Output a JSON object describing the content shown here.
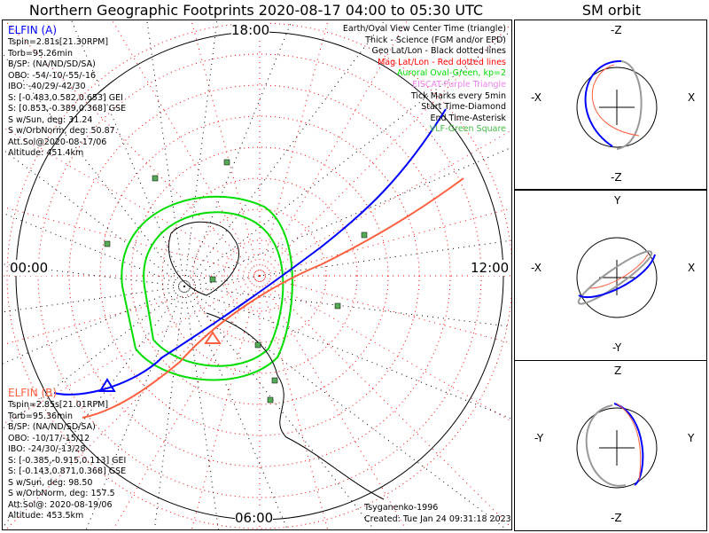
{
  "title": "Northern Geographic Footprints 2020-08-17 04:00 to 05:30 UTC",
  "sm_title": "SM orbit",
  "hours": {
    "top": "18:00",
    "left": "00:00",
    "right": "12:00",
    "bottom": "06:00"
  },
  "elfin_a": {
    "name": "ELFIN (A)",
    "color": "#0000ff",
    "lines": [
      "Tspin=2.81s[21.30RPM]",
      "Torb=95.26min",
      "B/SP: (NA/ND/SD/SA)",
      "OBO: -54/-10/-55/-16",
      "IBO: -40/29/-42/30",
      "S: [-0.483,0.582,0.653] GEI",
      "S: [0.853,-0.389,0.368] GSE",
      "S w/Sun, deg: 31.24",
      "S w/OrbNorm, deg: 50.87",
      "Att.Sol@2020-08-17/06",
      "Altitude: 451.4km"
    ]
  },
  "elfin_b": {
    "name": "ELFIN (B)",
    "color": "#ff6040",
    "lines": [
      "Tspin=2.85s[21.01RPM]",
      "Torb=95.36min",
      "B/SP: (NA/ND/SD/SA)",
      "OBO: -10/17/-15/12",
      "IBO: -24/30/-13/28",
      "S: [-0.385,-0.915,0.113] GEI",
      "S: [-0.143,0.871,0.368] GSE",
      "S w/Sun, deg: 98.50",
      "S w/OrbNorm, deg: 157.5",
      "Att.Sol@: 2020-08-19/06",
      "Altitude: 453.5km"
    ]
  },
  "legend": [
    {
      "text": "Earth/Oval View Center Time (triangle)",
      "color": "#000000"
    },
    {
      "text": "Thick - Science (FGM and/or EPD)",
      "color": "#000000"
    },
    {
      "text": "Geo Lat/Lon - Black dotted lines",
      "color": "#000000"
    },
    {
      "text": "Mag Lat/Lon - Red dotted lines",
      "color": "#ff0000"
    },
    {
      "text": "Auroral Oval-Green, kp=2",
      "color": "#00dd00"
    },
    {
      "text": "EISCAT-Purple Triangle",
      "color": "#ee82ee"
    },
    {
      "text": "Tick Marks every 5min",
      "color": "#000000"
    },
    {
      "text": "Start Time-Diamond",
      "color": "#000000"
    },
    {
      "text": "End Time-Asterisk",
      "color": "#000000"
    },
    {
      "text": "VLF-Green Square",
      "color": "#44bb44"
    }
  ],
  "footer": {
    "model": "Tsyganenko-1996",
    "created": "Created: Tue Jan 24 09:31:18 2023"
  },
  "sm_panels": [
    {
      "top": "-Z",
      "left": "-X",
      "right": "X",
      "bottom": "-Z"
    },
    {
      "top": "Y",
      "left": "-X",
      "right": "X",
      "bottom": "-Y"
    },
    {
      "top": "Z",
      "left": "-Y",
      "right": "Y",
      "bottom": "-Z"
    }
  ]
}
